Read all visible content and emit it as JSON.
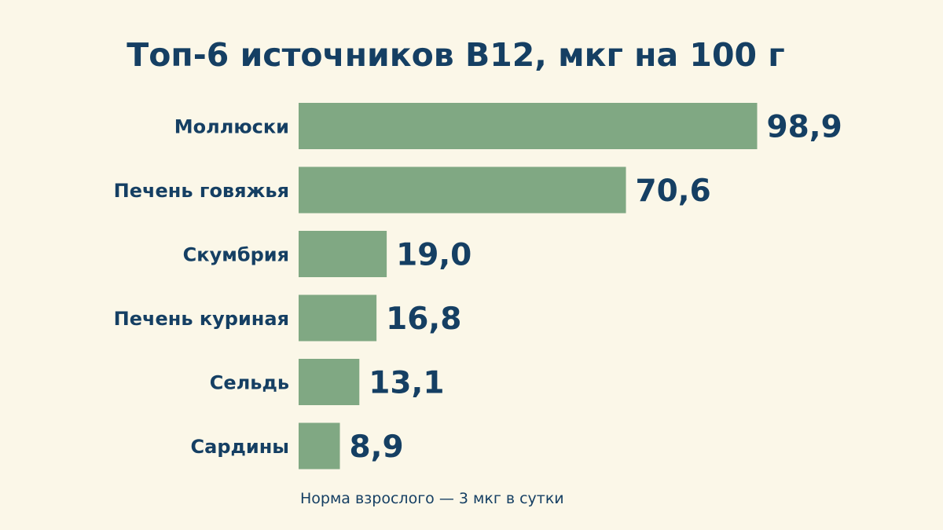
{
  "chart_data": {
    "type": "bar",
    "orientation": "horizontal",
    "title": "Топ-6 источников B12, мкг на 100 г",
    "categories": [
      "Моллюски",
      "Печень говяжья",
      "Скумбрия",
      "Печень куриная",
      "Сельдь",
      "Сардины"
    ],
    "values": [
      98.9,
      70.6,
      19.0,
      16.8,
      13.1,
      8.9
    ],
    "value_labels": [
      "98,9",
      "70,6",
      "19,0",
      "16,8",
      "13,1",
      "8,9"
    ],
    "xlim": [
      0,
      100
    ],
    "grid": false,
    "note": "Норма взрослого — 3 мкг в сутки"
  },
  "colors": {
    "background": "#fbf7e8",
    "bar": "#80a883",
    "text": "#153f63"
  }
}
